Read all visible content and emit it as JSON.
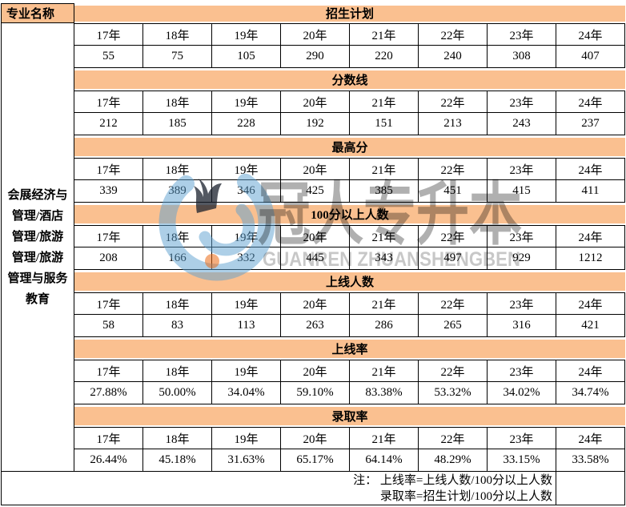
{
  "table": {
    "corner_header": "专业名称",
    "specialty": {
      "full_name": "会展经济与管理/酒店管理/旅游管理/旅游管理与服务教育",
      "lines": [
        "会展经济与",
        "管理/酒店",
        "管理/旅游",
        "管理/旅游",
        "管理与服务",
        "教育"
      ]
    },
    "years": [
      "17年",
      "18年",
      "19年",
      "20年",
      "21年",
      "22年",
      "23年",
      "24年"
    ],
    "sections": [
      {
        "title": "招生计划",
        "values": [
          "55",
          "75",
          "105",
          "290",
          "220",
          "240",
          "308",
          "407"
        ]
      },
      {
        "title": "分数线",
        "values": [
          "212",
          "185",
          "228",
          "192",
          "151",
          "213",
          "243",
          "237"
        ]
      },
      {
        "title": "最高分",
        "values": [
          "339",
          "389",
          "346",
          "425",
          "385",
          "451",
          "415",
          "411"
        ]
      },
      {
        "title": "100分以上人数",
        "values": [
          "208",
          "166",
          "332",
          "445",
          "343",
          "497",
          "929",
          "1212"
        ]
      },
      {
        "title": "上线人数",
        "values": [
          "58",
          "83",
          "113",
          "263",
          "286",
          "265",
          "316",
          "421"
        ]
      },
      {
        "title": "上线率",
        "values": [
          "27.88%",
          "50.00%",
          "34.04%",
          "59.10%",
          "83.38%",
          "53.32%",
          "34.02%",
          "34.74%"
        ]
      },
      {
        "title": "录取率",
        "values": [
          "26.44%",
          "45.18%",
          "31.63%",
          "65.17%",
          "64.14%",
          "48.29%",
          "33.15%",
          "33.58%"
        ]
      }
    ],
    "note": {
      "line1": "注： 上线率=上线人数/100分以上人数",
      "line2": "录取率=招生计划/100分以上人数"
    }
  },
  "watermark": {
    "brand_cn": "冠人专升本",
    "brand_en": "GUANREN ZHUANSHENGBEN"
  },
  "colors": {
    "header_fill": "#FAC090",
    "border": "#000000",
    "watermark_cn_gray": "#b0b0b0",
    "watermark_en_gray": "#c8c8c8",
    "logo_blue": "#aed4ea",
    "logo_crown": "#3d4450",
    "logo_orange_dot": "#f4a96b"
  }
}
